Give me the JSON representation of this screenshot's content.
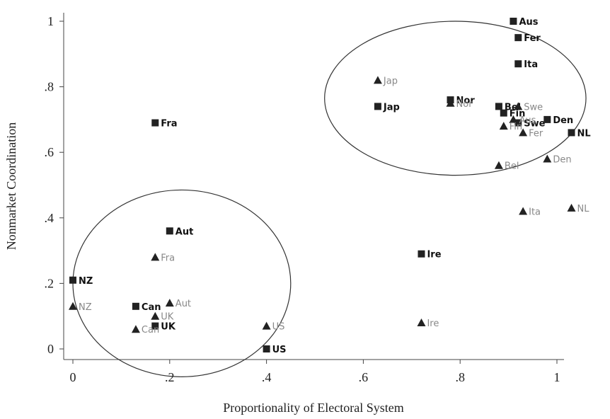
{
  "chart_data": {
    "type": "scatter",
    "title": "",
    "xlabel": "Proportionality of Electoral System",
    "ylabel": "Nonmarket Coordination",
    "xlim": [
      -0.02,
      1.02
    ],
    "ylim": [
      -0.03,
      1.03
    ],
    "x_ticks": [
      {
        "value": 0,
        "label": "0"
      },
      {
        "value": 0.2,
        "label": ".2"
      },
      {
        "value": 0.4,
        "label": ".4"
      },
      {
        "value": 0.6,
        "label": ".6"
      },
      {
        "value": 0.8,
        "label": ".8"
      },
      {
        "value": 1,
        "label": "1"
      }
    ],
    "y_ticks": [
      {
        "value": 0,
        "label": "0"
      },
      {
        "value": 0.2,
        "label": ".2"
      },
      {
        "value": 0.4,
        "label": ".4"
      },
      {
        "value": 0.6,
        "label": ".6"
      },
      {
        "value": 0.8,
        "label": ".8"
      },
      {
        "value": 1,
        "label": "1"
      }
    ],
    "grid": false,
    "series": [
      {
        "marker": "square",
        "color": "#222222",
        "label_color": "#111111",
        "points": [
          {
            "x": 0.91,
            "y": 1.0,
            "label": "Aus"
          },
          {
            "x": 0.92,
            "y": 0.95,
            "label": "Fer"
          },
          {
            "x": 0.92,
            "y": 0.87,
            "label": "Ita"
          },
          {
            "x": 0.78,
            "y": 0.76,
            "label": "Nor"
          },
          {
            "x": 0.88,
            "y": 0.74,
            "label": "Bel"
          },
          {
            "x": 0.89,
            "y": 0.72,
            "label": "Fin"
          },
          {
            "x": 0.92,
            "y": 0.69,
            "label": "Swe"
          },
          {
            "x": 0.98,
            "y": 0.7,
            "label": "Den"
          },
          {
            "x": 1.03,
            "y": 0.66,
            "label": "NL"
          },
          {
            "x": 0.63,
            "y": 0.74,
            "label": "Jap"
          },
          {
            "x": 0.17,
            "y": 0.69,
            "label": "Fra"
          },
          {
            "x": 0.2,
            "y": 0.36,
            "label": "Aut"
          },
          {
            "x": 0.72,
            "y": 0.29,
            "label": "Ire"
          },
          {
            "x": 0.0,
            "y": 0.21,
            "label": "NZ"
          },
          {
            "x": 0.13,
            "y": 0.13,
            "label": "Can"
          },
          {
            "x": 0.17,
            "y": 0.07,
            "label": "UK"
          },
          {
            "x": 0.4,
            "y": 0.0,
            "label": "US"
          }
        ]
      },
      {
        "marker": "triangle",
        "color": "#222222",
        "label_color": "#888888",
        "points": [
          {
            "x": 0.63,
            "y": 0.82,
            "label": "Jap"
          },
          {
            "x": 0.78,
            "y": 0.75,
            "label": "Nor"
          },
          {
            "x": 0.92,
            "y": 0.74,
            "label": "Swe"
          },
          {
            "x": 0.91,
            "y": 0.7,
            "label": "Aus"
          },
          {
            "x": 0.89,
            "y": 0.68,
            "label": "Fin"
          },
          {
            "x": 0.93,
            "y": 0.66,
            "label": "Fer"
          },
          {
            "x": 0.98,
            "y": 0.58,
            "label": "Den"
          },
          {
            "x": 0.88,
            "y": 0.56,
            "label": "Bel"
          },
          {
            "x": 1.03,
            "y": 0.43,
            "label": "NL"
          },
          {
            "x": 0.93,
            "y": 0.42,
            "label": "Ita"
          },
          {
            "x": 0.72,
            "y": 0.08,
            "label": "Ire"
          },
          {
            "x": 0.17,
            "y": 0.28,
            "label": "Fra"
          },
          {
            "x": 0.0,
            "y": 0.13,
            "label": "NZ"
          },
          {
            "x": 0.2,
            "y": 0.14,
            "label": "Aut"
          },
          {
            "x": 0.17,
            "y": 0.1,
            "label": "UK"
          },
          {
            "x": 0.13,
            "y": 0.06,
            "label": "Can"
          },
          {
            "x": 0.4,
            "y": 0.07,
            "label": "US"
          }
        ]
      }
    ],
    "ellipses": [
      {
        "cx": 0.225,
        "cy": 0.2,
        "rx": 0.225,
        "ry": 0.285
      },
      {
        "cx": 0.79,
        "cy": 0.765,
        "rx": 0.27,
        "ry": 0.235
      }
    ]
  }
}
